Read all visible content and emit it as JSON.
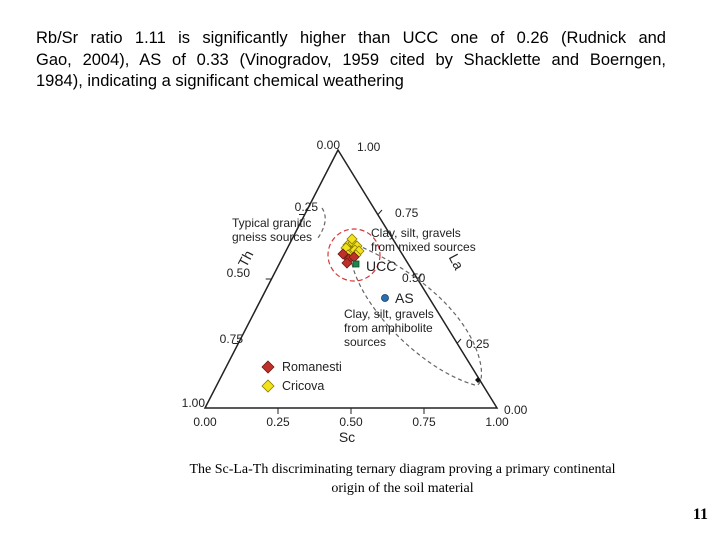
{
  "paragraph": {
    "lines": [
      "Rb/Sr ratio 1.11 is  significantly higher than UCC one of 0.26 (Rudnick and",
      "Gao, 2004), AS of  0.33  (Vinogradov, 1959 cited by Shacklette and Boerngen,",
      "1984), indicating a significant chemical weathering"
    ]
  },
  "diagram": {
    "top_left_label": "0.00",
    "top_right_label": "1.00",
    "left_axis_label": "Th",
    "right_axis_label": "La",
    "bottom_axis_label": "Sc",
    "left_ticks": [
      "0.25",
      "0.50",
      "0.75",
      "1.00"
    ],
    "right_ticks": [
      "0.75",
      "0.50",
      "0.25",
      "0.00"
    ],
    "bottom_ticks": [
      "0.00",
      "0.25",
      "0.50",
      "0.75",
      "1.00"
    ],
    "field_granitic": [
      "Typical granitic",
      "gneiss sources"
    ],
    "field_mixed": [
      "Clay, silt, gravels",
      "from mixed sources"
    ],
    "field_amphibolite": [
      "Clay, silt, gravels",
      "from amphibolite",
      "sources"
    ],
    "ref_ucc": "UCC",
    "ref_as": "AS",
    "legend": [
      {
        "label": "Romanesti",
        "color": "#c0302a"
      },
      {
        "label": "Cricova",
        "color": "#f2e21c"
      }
    ],
    "colors": {
      "romanesti": "#c0302a",
      "cricova": "#f2e21c",
      "ucc": "#1a8a4a",
      "as": "#2a6fb0",
      "field_circle": "#d23a3a",
      "dashed": "#666666"
    }
  },
  "caption": {
    "lines": [
      "The Sc-La-Th discriminating ternary diagram proving a primary continental",
      "origin of the soil material"
    ]
  },
  "page_number": "11"
}
